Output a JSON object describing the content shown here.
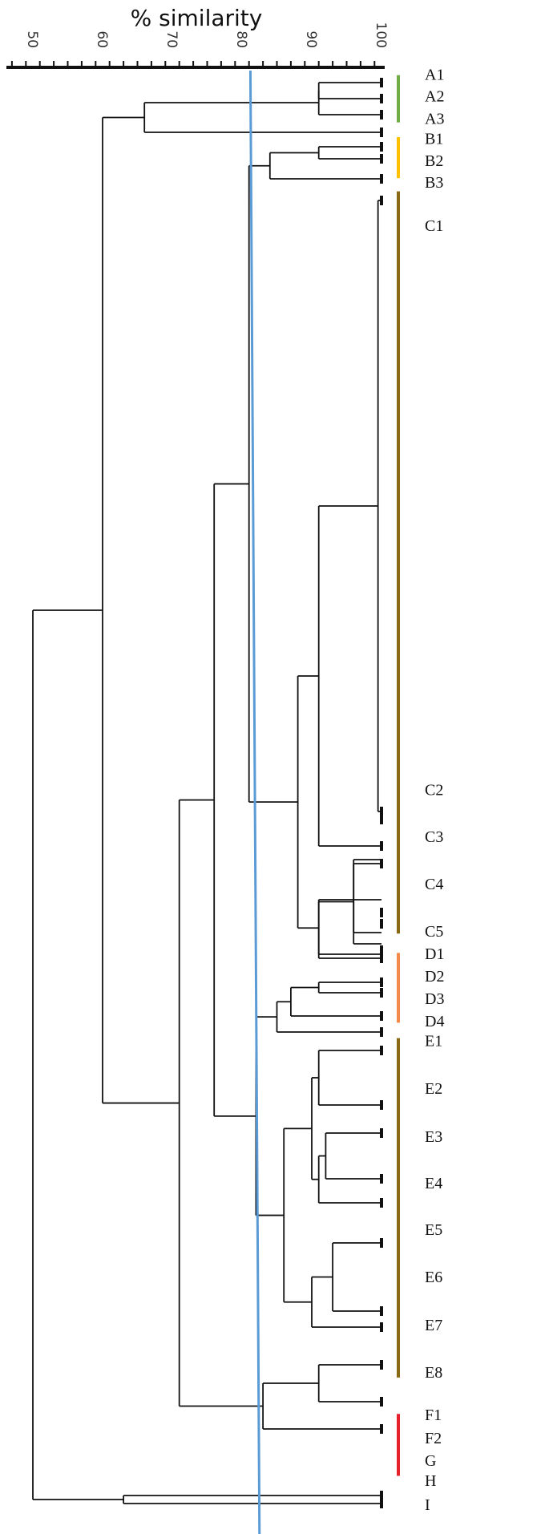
{
  "axis": {
    "title": "% similarity",
    "min": 45,
    "max": 100,
    "tick_labels": [
      "50",
      "60",
      "70",
      "80",
      "90",
      "100"
    ],
    "major_ticks": [
      50,
      60,
      70,
      80,
      90,
      100
    ],
    "minor_step": 2
  },
  "cutoff_line": {
    "top_value": 81.2,
    "bottom_value": 82.5,
    "color": "#5B9BD5"
  },
  "leaf_labels": [
    "A1",
    "A2",
    "A3",
    "B1",
    "B2",
    "B3",
    "C1",
    "C2",
    "C3",
    "C4",
    "C5",
    "D1",
    "D2",
    "D3",
    "D4",
    "E1",
    "E2",
    "E3",
    "E4",
    "E5",
    "E6",
    "E7",
    "E8",
    "F1",
    "F2",
    "G",
    "H",
    "I"
  ],
  "groups": [
    {
      "leaves": [
        "A1",
        "A2",
        "A3"
      ],
      "color": "#70AD47"
    },
    {
      "leaves": [
        "B1",
        "B2",
        "B3"
      ],
      "color": "#FFC000"
    },
    {
      "leaves": [
        "C1",
        "C2",
        "C3",
        "C4",
        "C5"
      ],
      "color": "#8B6914"
    },
    {
      "leaves": [
        "D1",
        "D2",
        "D3",
        "D4"
      ],
      "color": "#F4894A"
    },
    {
      "leaves": [
        "E1",
        "E2",
        "E3",
        "E4",
        "E5",
        "E6",
        "E7",
        "E8"
      ],
      "color": "#8B6914"
    },
    {
      "leaves": [
        "F1",
        "F2",
        "G",
        "H"
      ],
      "color": "#E8202A"
    }
  ]
}
